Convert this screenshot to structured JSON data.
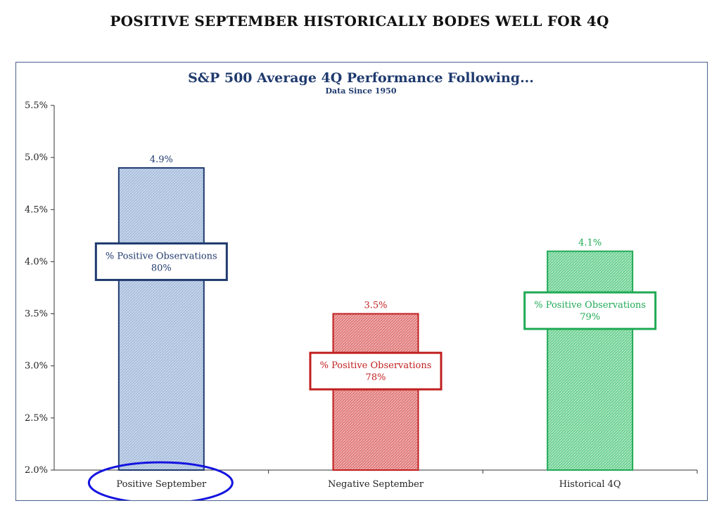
{
  "page": {
    "title": "POSITIVE SEPTEMBER HISTORICALLY BODES WELL FOR 4Q"
  },
  "chart_data": {
    "type": "bar",
    "title": "S&P 500 Average 4Q Performance Following...",
    "subtitle": "Data Since 1950",
    "categories": [
      "Positive September",
      "Negative September",
      "Historical 4Q"
    ],
    "values": [
      4.9,
      3.5,
      4.1
    ],
    "value_labels": [
      "4.9%",
      "3.5%",
      "4.1%"
    ],
    "ylim": [
      2.0,
      5.5
    ],
    "yticks": [
      "2.0%",
      "2.5%",
      "3.0%",
      "3.5%",
      "4.0%",
      "4.5%",
      "5.0%",
      "5.5%"
    ],
    "ytick_values": [
      2.0,
      2.5,
      3.0,
      3.5,
      4.0,
      4.5,
      5.0,
      5.5
    ],
    "grid": false,
    "colors": {
      "fills": [
        "#a8bedd",
        "#e07a7a",
        "#6fcf93"
      ],
      "strokes": [
        "#1f3a6e",
        "#c01f1f",
        "#1faa55"
      ],
      "title": "#1f3a6e",
      "highlight_ellipse": "#1414e0"
    },
    "annotations": [
      {
        "line1": "% Positive Observations",
        "line2": "80%",
        "at_value": 4.0,
        "bar": 0
      },
      {
        "line1": "% Positive Observations",
        "line2": "78%",
        "at_value": 2.95,
        "bar": 1
      },
      {
        "line1": "% Positive Observations",
        "line2": "79%",
        "at_value": 3.53,
        "bar": 2
      }
    ],
    "highlighted_category": "Positive September"
  }
}
